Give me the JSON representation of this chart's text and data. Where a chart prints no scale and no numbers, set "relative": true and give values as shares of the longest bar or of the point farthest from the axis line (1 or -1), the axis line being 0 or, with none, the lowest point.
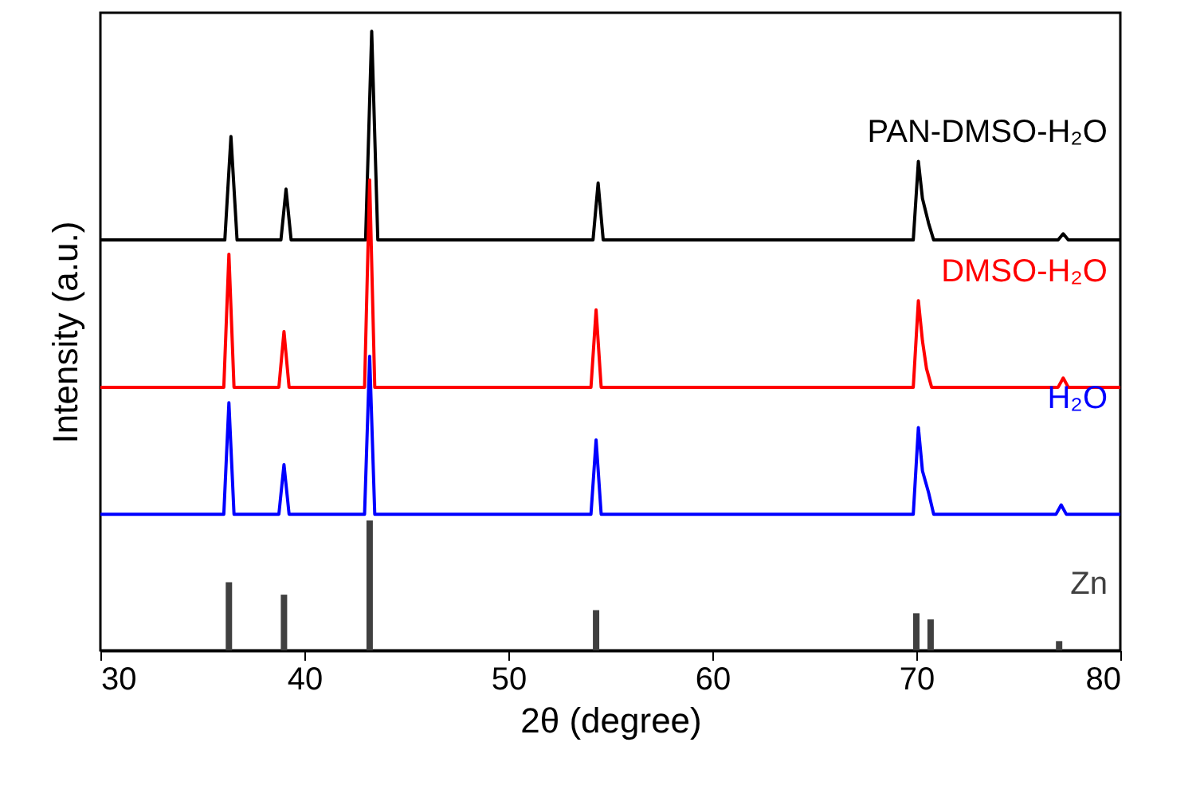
{
  "chart_data": {
    "type": "line",
    "relative": true,
    "xlabel": "2θ (degree)",
    "ylabel": "Intensity (a.u.)",
    "xlim": [
      30,
      80
    ],
    "xticks": [
      30,
      40,
      50,
      60,
      70,
      80
    ],
    "grid": false,
    "legend": false,
    "line_style": "solid",
    "marker": "none",
    "series": [
      {
        "name": "PAN-DMSO-H₂O",
        "color": "#000000",
        "x": [
          30,
          36.1,
          36.4,
          36.7,
          38.85,
          39.1,
          39.35,
          43.0,
          43.3,
          43.6,
          54.15,
          54.4,
          54.65,
          69.85,
          70.1,
          70.3,
          70.6,
          70.85,
          76.95,
          77.2,
          77.45,
          80
        ],
        "values": [
          0.663,
          0.663,
          0.83,
          0.663,
          0.663,
          0.745,
          0.663,
          0.663,
          1.0,
          0.663,
          0.663,
          0.755,
          0.663,
          0.663,
          0.79,
          0.73,
          0.69,
          0.663,
          0.663,
          0.673,
          0.663,
          0.663
        ]
      },
      {
        "name": "DMSO-H₂O",
        "color": "#ff0000",
        "x": [
          30,
          36.05,
          36.3,
          36.55,
          38.75,
          39.0,
          39.25,
          42.95,
          43.2,
          43.45,
          54.05,
          54.3,
          54.55,
          69.85,
          70.1,
          70.3,
          70.5,
          70.75,
          76.95,
          77.2,
          77.45,
          80
        ],
        "values": [
          0.425,
          0.425,
          0.64,
          0.425,
          0.425,
          0.515,
          0.425,
          0.425,
          0.76,
          0.425,
          0.425,
          0.55,
          0.425,
          0.425,
          0.565,
          0.5,
          0.455,
          0.425,
          0.425,
          0.44,
          0.425,
          0.425
        ]
      },
      {
        "name": "H₂O",
        "color": "#0000ff",
        "x": [
          30,
          36.05,
          36.3,
          36.55,
          38.75,
          39.0,
          39.25,
          42.95,
          43.2,
          43.45,
          54.05,
          54.3,
          54.55,
          69.85,
          70.1,
          70.3,
          70.6,
          70.85,
          76.85,
          77.1,
          77.35,
          80
        ],
        "values": [
          0.22,
          0.22,
          0.4,
          0.22,
          0.22,
          0.3,
          0.22,
          0.22,
          0.475,
          0.22,
          0.22,
          0.34,
          0.22,
          0.22,
          0.36,
          0.29,
          0.255,
          0.22,
          0.22,
          0.235,
          0.22,
          0.22
        ]
      },
      {
        "name": "Zn",
        "color": "#404040",
        "type": "bar",
        "x": [
          36.3,
          39.0,
          43.2,
          54.3,
          70.0,
          70.7,
          77.0
        ],
        "values": [
          0.11,
          0.09,
          0.21,
          0.065,
          0.06,
          0.05,
          0.015
        ]
      }
    ]
  }
}
